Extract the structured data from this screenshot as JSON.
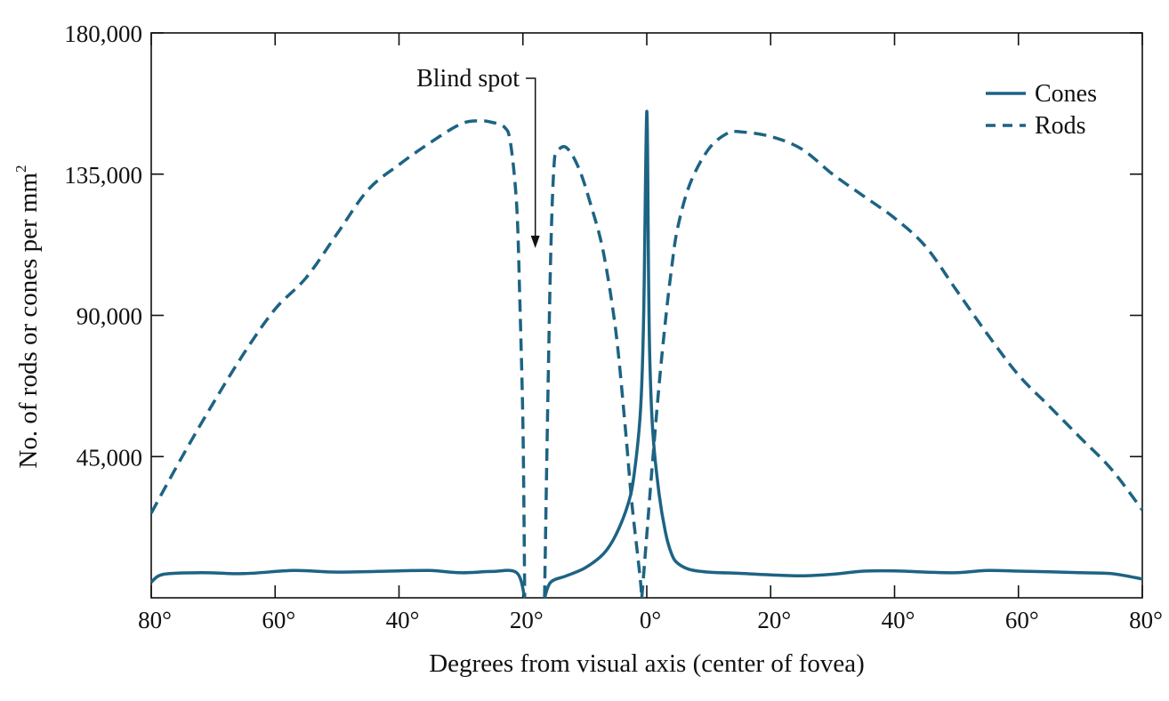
{
  "chart_data": {
    "type": "line",
    "xlabel": "Degrees from visual axis (center of fovea)",
    "ylabel": "No. of rods or cones per mm",
    "ylabel_superscript": "2",
    "xlim": [
      -80,
      80
    ],
    "ylim": [
      0,
      180000
    ],
    "x_ticks": [
      -80,
      -60,
      -40,
      -20,
      0,
      20,
      40,
      60,
      80
    ],
    "x_tick_labels": [
      "80°",
      "60°",
      "40°",
      "20°",
      "0°",
      "20°",
      "40°",
      "60°",
      "80°"
    ],
    "y_ticks": [
      45000,
      90000,
      135000,
      180000
    ],
    "y_tick_labels": [
      "45,000",
      "90,000",
      "135,000",
      "180,000"
    ],
    "grid": false,
    "legend_position": "top-right",
    "line_color": "#1d6384",
    "series": [
      {
        "name": "Cones",
        "style": "solid",
        "segments": [
          {
            "x": [
              -80,
              -78,
              -72,
              -65,
              -57,
              -50,
              -40,
              -35,
              -30,
              -25,
              -21,
              -19.7
            ],
            "y": [
              5000,
              7500,
              8000,
              7700,
              8700,
              8200,
              8600,
              8700,
              8000,
              8400,
              8000,
              0
            ]
          },
          {
            "x": [
              -16.5,
              -15.5,
              -13,
              -10,
              -7,
              -5,
              -3,
              -2,
              -1,
              -0.5,
              0,
              0.3,
              0.5,
              1,
              2,
              3,
              4,
              5,
              7,
              10,
              15,
              20,
              25,
              30,
              35,
              40,
              45,
              50,
              55,
              60,
              65,
              70,
              75,
              80
            ],
            "y": [
              0,
              5000,
              7000,
              9500,
              14000,
              20000,
              30000,
              40000,
              60000,
              90000,
              155000,
              100000,
              75000,
              52000,
              33000,
              21000,
              14000,
              11000,
              9000,
              8200,
              7800,
              7300,
              7000,
              7500,
              8500,
              8600,
              8200,
              8000,
              8700,
              8500,
              8300,
              8000,
              7700,
              6000
            ]
          }
        ]
      },
      {
        "name": "Rods",
        "style": "dashed",
        "segments": [
          {
            "x": [
              -80,
              -75,
              -70,
              -65,
              -60,
              -55,
              -50,
              -45,
              -40,
              -35,
              -30,
              -27,
              -25,
              -23,
              -22,
              -21,
              -20.5,
              -20,
              -19.7
            ],
            "y": [
              27000,
              45000,
              62000,
              78000,
              92000,
              102000,
              116000,
              130000,
              138000,
              145000,
              151000,
              152000,
              151500,
              150000,
              145000,
              125000,
              95000,
              55000,
              0
            ]
          },
          {
            "x": [
              -16.5,
              -16,
              -15.5,
              -15,
              -14.5,
              -13,
              -11,
              -9,
              -7,
              -5,
              -3.5,
              -2.5,
              -1.5,
              -1,
              -0.8
            ],
            "y": [
              0,
              60000,
              110000,
              137000,
              142000,
              143500,
              137000,
              125000,
              110000,
              85000,
              55000,
              32000,
              14000,
              5000,
              0
            ]
          },
          {
            "x": [
              -0.8,
              0,
              1,
              2,
              3,
              4,
              5,
              7,
              10,
              13,
              15,
              20,
              25,
              30,
              35,
              40,
              45,
              50,
              55,
              60,
              65,
              70,
              75,
              80
            ],
            "y": [
              0,
              20000,
              45000,
              68000,
              88000,
              105000,
              118000,
              132000,
              143000,
              148000,
              148500,
              147000,
              143000,
              135000,
              128000,
              121000,
              112000,
              98000,
              84000,
              71000,
              61000,
              51000,
              41000,
              28000
            ]
          }
        ]
      }
    ],
    "annotations": [
      {
        "text": "Blind spot",
        "x": -18,
        "y": 112000
      }
    ]
  }
}
